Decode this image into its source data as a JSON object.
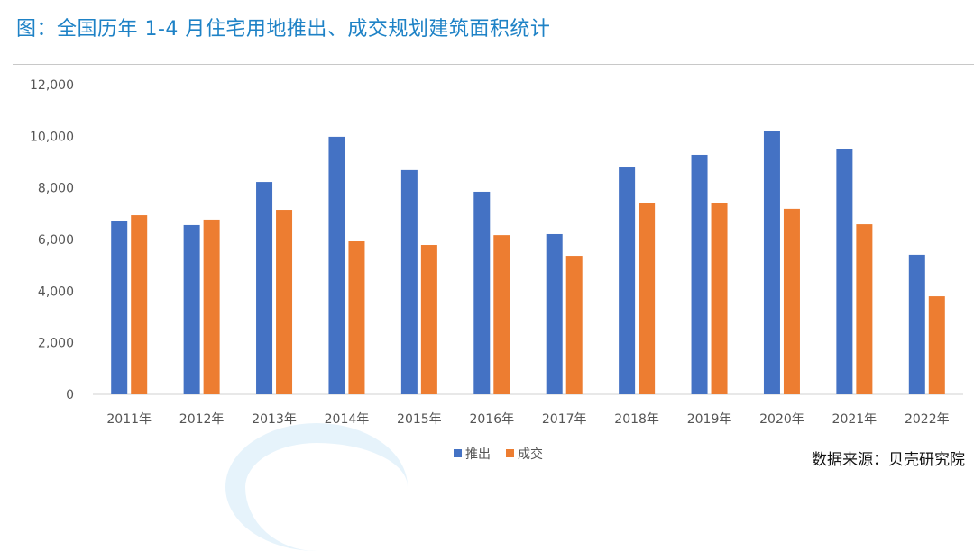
{
  "title": "图：全国历年 1-4 月住宅用地推出、成交规划建筑面积统计",
  "source": "数据来源：贝壳研究院",
  "colors": {
    "推出": "#4472c4",
    "成交": "#ed7d31"
  },
  "chart_data": {
    "type": "bar",
    "title": "图：全国历年 1-4 月住宅用地推出、成交规划建筑面积统计",
    "categories": [
      "2011年",
      "2012年",
      "2013年",
      "2014年",
      "2015年",
      "2016年",
      "2017年",
      "2018年",
      "2019年",
      "2020年",
      "2021年",
      "2022年"
    ],
    "series": [
      {
        "name": "推出",
        "values": [
          6730,
          6560,
          8230,
          9980,
          8690,
          7850,
          6210,
          8790,
          9280,
          10220,
          9490,
          5410
        ]
      },
      {
        "name": "成交",
        "values": [
          6940,
          6770,
          7150,
          5930,
          5790,
          6170,
          5370,
          7400,
          7430,
          7190,
          6590,
          3800
        ]
      }
    ],
    "yticks": [
      "0",
      "2,000",
      "4,000",
      "6,000",
      "8,000",
      "10,000",
      "12,000"
    ],
    "ylim": [
      0,
      12000
    ],
    "xlabel": "",
    "ylabel": "",
    "grid": false,
    "legend": "bottom-center"
  }
}
